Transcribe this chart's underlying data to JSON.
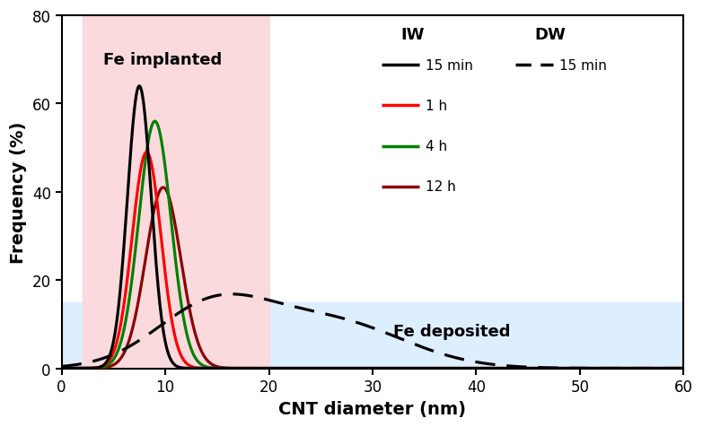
{
  "xlabel": "CNT diameter (nm)",
  "ylabel": "Frequency (%)",
  "xlim": [
    0,
    60
  ],
  "ylim": [
    0,
    80
  ],
  "xticks": [
    0,
    10,
    20,
    30,
    40,
    50,
    60
  ],
  "yticks": [
    0,
    20,
    40,
    60,
    80
  ],
  "pink_region": [
    2,
    20
  ],
  "blue_region_y_max": 15,
  "pink_color": "#FADADD",
  "blue_color": "#DDEEFF",
  "label_fe_implanted": "Fe implanted",
  "label_fe_deposited": "Fe deposited",
  "legend_iw_label": "IW",
  "legend_dw_label": "DW",
  "iw_lines": [
    {
      "label": "15 min",
      "color": "#000000",
      "peak": 7.5,
      "height": 64,
      "sigma": 1.15
    },
    {
      "label": "1 h",
      "color": "#FF0000",
      "peak": 8.2,
      "height": 49,
      "sigma": 1.4
    },
    {
      "label": "4 h",
      "color": "#008000",
      "peak": 9.0,
      "height": 56,
      "sigma": 1.55
    },
    {
      "label": "12 h",
      "color": "#8B0000",
      "peak": 9.8,
      "height": 41,
      "sigma": 1.7
    }
  ],
  "dw_gaussian1": {
    "mu": 14.5,
    "sigma": 5.5,
    "height": 13.5
  },
  "dw_gaussian2": {
    "mu": 26.0,
    "sigma": 7.0,
    "height": 10.5
  },
  "dw_color": "#000000",
  "linewidth": 2.3,
  "fontsize_label": 14,
  "fontsize_tick": 12,
  "fontsize_annotation": 13,
  "fontsize_legend_header": 13,
  "fontsize_legend_entry": 11
}
